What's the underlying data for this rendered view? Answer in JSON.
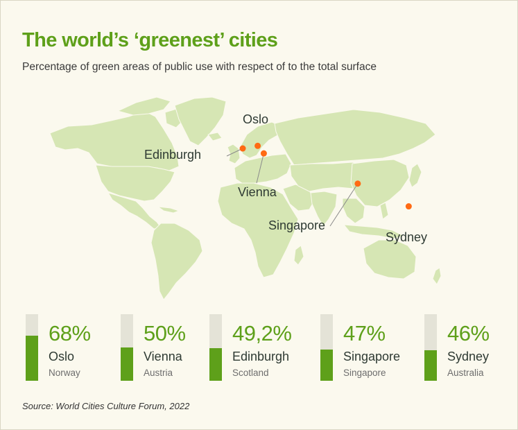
{
  "header": {
    "title": "The world’s ‘greenest’ cities",
    "subtitle": "Percentage of green areas of public use with respect of to the total surface"
  },
  "map": {
    "land_color": "#d6e6b4",
    "marker_color": "#ff6a13",
    "cities": [
      {
        "name": "Oslo",
        "lat": 59.9,
        "lon": 10.7
      },
      {
        "name": "Edinburgh",
        "lat": 55.9,
        "lon": -3.2
      },
      {
        "name": "Vienna",
        "lat": 48.2,
        "lon": 16.4
      },
      {
        "name": "Singapore",
        "lat": 1.35,
        "lon": 103.8
      },
      {
        "name": "Sydney",
        "lat": -33.9,
        "lon": 151.2
      }
    ]
  },
  "chart_data": {
    "type": "bar",
    "categories": [
      "Oslo",
      "Vienna",
      "Edinburgh",
      "Singapore",
      "Sydney"
    ],
    "values": [
      68,
      50,
      49.2,
      47,
      46
    ],
    "ylim": [
      0,
      100
    ],
    "stats": [
      {
        "value": 68,
        "label": "68%",
        "city": "Oslo",
        "country": "Norway"
      },
      {
        "value": 50,
        "label": "50%",
        "city": "Vienna",
        "country": "Austria"
      },
      {
        "value": 49.2,
        "label": "49,2%",
        "city": "Edinburgh",
        "country": "Scotland"
      },
      {
        "value": 47,
        "label": "47%",
        "city": "Singapore",
        "country": "Singapore"
      },
      {
        "value": 46,
        "label": "46%",
        "city": "Sydney",
        "country": "Australia"
      }
    ]
  },
  "footer": {
    "source": "Source: World Cities Culture Forum, 2022"
  }
}
